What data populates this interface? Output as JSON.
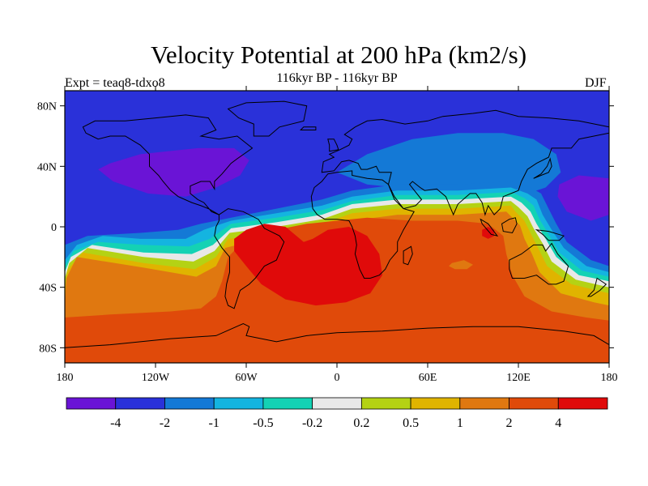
{
  "title": "Velocity Potential at 200 hPa (km2/s)",
  "subtitle": "116kyr BP - 116kyr BP",
  "left_label": "Expt = teaq8-tdxo8",
  "right_label": "DJF",
  "map": {
    "lon_range": [
      -180,
      180
    ],
    "lat_range": [
      -90,
      90
    ],
    "lon_ticks": [
      {
        "value": -180,
        "label": "180"
      },
      {
        "value": -120,
        "label": "120W"
      },
      {
        "value": -60,
        "label": "60W"
      },
      {
        "value": 0,
        "label": "0"
      },
      {
        "value": 60,
        "label": "60E"
      },
      {
        "value": 120,
        "label": "120E"
      },
      {
        "value": 180,
        "label": "180"
      }
    ],
    "lat_ticks": [
      {
        "value": 80,
        "label": "80N"
      },
      {
        "value": 40,
        "label": "40N"
      },
      {
        "value": 0,
        "label": "0"
      },
      {
        "value": -40,
        "label": "40S"
      },
      {
        "value": -80,
        "label": "80S"
      }
    ],
    "background_color": "#2a31d9"
  },
  "colorbar": {
    "colors": [
      "#6a14d6",
      "#2a31d9",
      "#1479d6",
      "#14b4e0",
      "#14d2b4",
      "#e8e8e8",
      "#b4d214",
      "#e0b400",
      "#e07810",
      "#e04a0a",
      "#e00a0a"
    ],
    "labels": [
      "-4",
      "-2",
      "-1",
      "-0.5",
      "-0.2",
      "0.2",
      "0.5",
      "1",
      "2",
      "4"
    ]
  }
}
